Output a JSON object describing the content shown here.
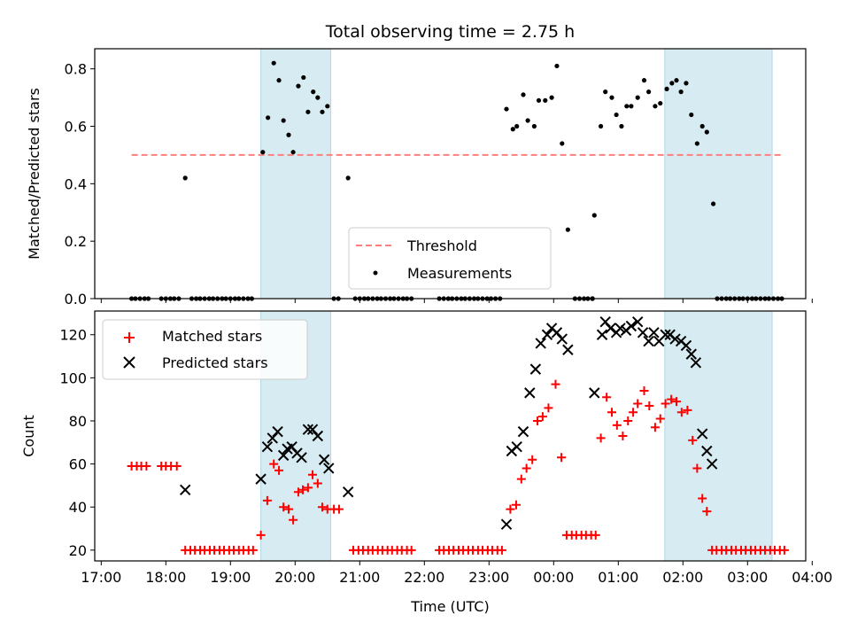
{
  "chart_data": {
    "type": "scatter",
    "title": "Total observing time = 2.75 h",
    "xlabel": "Time (UTC)",
    "xlim_hours": [
      16.9,
      27.9
    ],
    "xticks": [
      {
        "v": 17,
        "label": "17:00"
      },
      {
        "v": 18,
        "label": "18:00"
      },
      {
        "v": 19,
        "label": "19:00"
      },
      {
        "v": 20,
        "label": "20:00"
      },
      {
        "v": 21,
        "label": "21:00"
      },
      {
        "v": 22,
        "label": "22:00"
      },
      {
        "v": 23,
        "label": "23:00"
      },
      {
        "v": 24,
        "label": "00:00"
      },
      {
        "v": 25,
        "label": "01:00"
      },
      {
        "v": 26,
        "label": "02:00"
      },
      {
        "v": 27,
        "label": "03:00"
      },
      {
        "v": 28,
        "label": "04:00"
      }
    ],
    "colors": {
      "span": "#add8e6",
      "threshold": "#ff7f7f",
      "measurement": "#000000",
      "matched": "#ff0000",
      "predicted": "#000000"
    },
    "observing_spans": [
      [
        19.47,
        20.55
      ],
      [
        25.72,
        27.38
      ]
    ],
    "top": {
      "ylabel": "Matched/Predicted stars",
      "ylim": [
        0,
        0.87
      ],
      "yticks": [
        "0.0",
        "0.2",
        "0.4",
        "0.6",
        "0.8"
      ],
      "threshold": {
        "value": 0.5,
        "x": [
          17.47,
          27.55
        ],
        "label": "Threshold"
      },
      "measurements_label": "Measurements",
      "measurements": [
        [
          17.47,
          0
        ],
        [
          17.53,
          0
        ],
        [
          17.6,
          0
        ],
        [
          17.67,
          0
        ],
        [
          17.73,
          0
        ],
        [
          17.93,
          0
        ],
        [
          18.0,
          0
        ],
        [
          18.07,
          0
        ],
        [
          18.13,
          0
        ],
        [
          18.2,
          0
        ],
        [
          18.3,
          0.42
        ],
        [
          18.4,
          0
        ],
        [
          18.47,
          0
        ],
        [
          18.53,
          0
        ],
        [
          18.6,
          0
        ],
        [
          18.67,
          0
        ],
        [
          18.73,
          0
        ],
        [
          18.8,
          0
        ],
        [
          18.87,
          0
        ],
        [
          18.93,
          0
        ],
        [
          19.0,
          0
        ],
        [
          19.07,
          0
        ],
        [
          19.13,
          0
        ],
        [
          19.2,
          0
        ],
        [
          19.27,
          0
        ],
        [
          19.33,
          0
        ],
        [
          19.5,
          0.51
        ],
        [
          19.58,
          0.63
        ],
        [
          19.67,
          0.82
        ],
        [
          19.75,
          0.76
        ],
        [
          19.82,
          0.62
        ],
        [
          19.9,
          0.57
        ],
        [
          19.97,
          0.51
        ],
        [
          20.05,
          0.74
        ],
        [
          20.13,
          0.77
        ],
        [
          20.2,
          0.65
        ],
        [
          20.28,
          0.72
        ],
        [
          20.35,
          0.7
        ],
        [
          20.42,
          0.65
        ],
        [
          20.5,
          0.67
        ],
        [
          20.6,
          0
        ],
        [
          20.67,
          0
        ],
        [
          20.82,
          0.42
        ],
        [
          20.93,
          0
        ],
        [
          21.0,
          0
        ],
        [
          21.07,
          0
        ],
        [
          21.13,
          0
        ],
        [
          21.2,
          0
        ],
        [
          21.27,
          0
        ],
        [
          21.33,
          0
        ],
        [
          21.4,
          0
        ],
        [
          21.47,
          0
        ],
        [
          21.53,
          0
        ],
        [
          21.6,
          0
        ],
        [
          21.67,
          0
        ],
        [
          21.73,
          0
        ],
        [
          21.8,
          0
        ],
        [
          22.23,
          0
        ],
        [
          22.3,
          0
        ],
        [
          22.37,
          0
        ],
        [
          22.43,
          0
        ],
        [
          22.5,
          0
        ],
        [
          22.57,
          0
        ],
        [
          22.63,
          0
        ],
        [
          22.7,
          0
        ],
        [
          22.77,
          0
        ],
        [
          22.83,
          0
        ],
        [
          22.9,
          0
        ],
        [
          22.97,
          0
        ],
        [
          23.03,
          0
        ],
        [
          23.1,
          0
        ],
        [
          23.17,
          0
        ],
        [
          23.27,
          0.66
        ],
        [
          23.37,
          0.59
        ],
        [
          23.43,
          0.6
        ],
        [
          23.53,
          0.71
        ],
        [
          23.6,
          0.62
        ],
        [
          23.7,
          0.6
        ],
        [
          23.77,
          0.69
        ],
        [
          23.87,
          0.69
        ],
        [
          23.97,
          0.7
        ],
        [
          24.05,
          0.81
        ],
        [
          24.13,
          0.54
        ],
        [
          24.22,
          0.24
        ],
        [
          24.33,
          0
        ],
        [
          24.4,
          0
        ],
        [
          24.47,
          0
        ],
        [
          24.53,
          0
        ],
        [
          24.6,
          0
        ],
        [
          24.6,
          0
        ],
        [
          24.6,
          0
        ],
        [
          24.63,
          0.29
        ],
        [
          24.73,
          0.6
        ],
        [
          24.8,
          0.72
        ],
        [
          24.9,
          0.7
        ],
        [
          24.97,
          0.64
        ],
        [
          25.05,
          0.6
        ],
        [
          25.13,
          0.67
        ],
        [
          25.2,
          0.67
        ],
        [
          25.3,
          0.7
        ],
        [
          25.4,
          0.76
        ],
        [
          25.47,
          0.72
        ],
        [
          25.57,
          0.67
        ],
        [
          25.65,
          0.68
        ],
        [
          25.75,
          0.73
        ],
        [
          25.83,
          0.75
        ],
        [
          25.9,
          0.76
        ],
        [
          25.97,
          0.72
        ],
        [
          26.05,
          0.75
        ],
        [
          26.13,
          0.64
        ],
        [
          26.22,
          0.54
        ],
        [
          26.3,
          0.6
        ],
        [
          26.37,
          0.58
        ],
        [
          26.47,
          0.33
        ],
        [
          26.53,
          0
        ],
        [
          26.6,
          0
        ],
        [
          26.67,
          0
        ],
        [
          26.73,
          0
        ],
        [
          26.8,
          0
        ],
        [
          26.87,
          0
        ],
        [
          26.93,
          0
        ],
        [
          27.0,
          0
        ],
        [
          27.07,
          0
        ],
        [
          27.13,
          0
        ],
        [
          27.2,
          0
        ],
        [
          27.27,
          0
        ],
        [
          27.33,
          0
        ],
        [
          27.4,
          0
        ],
        [
          27.47,
          0
        ],
        [
          27.53,
          0
        ]
      ]
    },
    "bottom": {
      "ylabel": "Count",
      "ylim": [
        15,
        131
      ],
      "yticks": [
        "20",
        "40",
        "60",
        "80",
        "100",
        "120"
      ],
      "matched_label": "Matched stars",
      "predicted_label": "Predicted stars",
      "matched": [
        [
          17.47,
          59
        ],
        [
          17.55,
          59
        ],
        [
          17.62,
          59
        ],
        [
          17.7,
          59
        ],
        [
          17.93,
          59
        ],
        [
          18.0,
          59
        ],
        [
          18.08,
          59
        ],
        [
          18.17,
          59
        ],
        [
          18.3,
          20
        ],
        [
          18.38,
          20
        ],
        [
          18.45,
          20
        ],
        [
          18.53,
          20
        ],
        [
          18.6,
          20
        ],
        [
          18.68,
          20
        ],
        [
          18.75,
          20
        ],
        [
          18.83,
          20
        ],
        [
          18.9,
          20
        ],
        [
          18.98,
          20
        ],
        [
          19.05,
          20
        ],
        [
          19.13,
          20
        ],
        [
          19.2,
          20
        ],
        [
          19.28,
          20
        ],
        [
          19.35,
          20
        ],
        [
          19.47,
          27
        ],
        [
          19.57,
          43
        ],
        [
          19.67,
          60
        ],
        [
          19.75,
          57
        ],
        [
          19.82,
          40
        ],
        [
          19.9,
          39
        ],
        [
          19.97,
          34
        ],
        [
          20.05,
          47
        ],
        [
          20.12,
          48
        ],
        [
          20.2,
          49
        ],
        [
          20.27,
          55
        ],
        [
          20.35,
          51
        ],
        [
          20.42,
          40
        ],
        [
          20.5,
          39
        ],
        [
          20.6,
          39
        ],
        [
          20.68,
          39
        ],
        [
          20.9,
          20
        ],
        [
          20.98,
          20
        ],
        [
          21.05,
          20
        ],
        [
          21.13,
          20
        ],
        [
          21.2,
          20
        ],
        [
          21.28,
          20
        ],
        [
          21.35,
          20
        ],
        [
          21.43,
          20
        ],
        [
          21.5,
          20
        ],
        [
          21.58,
          20
        ],
        [
          21.65,
          20
        ],
        [
          21.73,
          20
        ],
        [
          21.8,
          20
        ],
        [
          22.23,
          20
        ],
        [
          22.3,
          20
        ],
        [
          22.38,
          20
        ],
        [
          22.45,
          20
        ],
        [
          22.53,
          20
        ],
        [
          22.6,
          20
        ],
        [
          22.68,
          20
        ],
        [
          22.75,
          20
        ],
        [
          22.83,
          20
        ],
        [
          22.9,
          20
        ],
        [
          22.98,
          20
        ],
        [
          23.05,
          20
        ],
        [
          23.13,
          20
        ],
        [
          23.2,
          20
        ],
        [
          23.33,
          39
        ],
        [
          23.42,
          41
        ],
        [
          23.5,
          53
        ],
        [
          23.58,
          58
        ],
        [
          23.67,
          62
        ],
        [
          23.75,
          80
        ],
        [
          23.83,
          82
        ],
        [
          23.92,
          86
        ],
        [
          24.03,
          97
        ],
        [
          24.12,
          63
        ],
        [
          24.2,
          27
        ],
        [
          24.28,
          27
        ],
        [
          24.35,
          27
        ],
        [
          24.43,
          27
        ],
        [
          24.5,
          27
        ],
        [
          24.58,
          27
        ],
        [
          24.65,
          27
        ],
        [
          24.73,
          72
        ],
        [
          24.82,
          91
        ],
        [
          24.9,
          84
        ],
        [
          24.98,
          78
        ],
        [
          25.07,
          73
        ],
        [
          25.15,
          80
        ],
        [
          25.23,
          84
        ],
        [
          25.3,
          88
        ],
        [
          25.4,
          94
        ],
        [
          25.48,
          87
        ],
        [
          25.57,
          77
        ],
        [
          25.65,
          81
        ],
        [
          25.73,
          88
        ],
        [
          25.82,
          90
        ],
        [
          25.9,
          89
        ],
        [
          25.98,
          84
        ],
        [
          26.07,
          85
        ],
        [
          26.15,
          71
        ],
        [
          26.22,
          58
        ],
        [
          26.3,
          44
        ],
        [
          26.37,
          38
        ],
        [
          26.45,
          20
        ],
        [
          26.52,
          20
        ],
        [
          26.6,
          20
        ],
        [
          26.67,
          20
        ],
        [
          26.75,
          20
        ],
        [
          26.82,
          20
        ],
        [
          26.9,
          20
        ],
        [
          26.97,
          20
        ],
        [
          27.05,
          20
        ],
        [
          27.12,
          20
        ],
        [
          27.2,
          20
        ],
        [
          27.27,
          20
        ],
        [
          27.35,
          20
        ],
        [
          27.42,
          20
        ],
        [
          27.5,
          20
        ],
        [
          27.57,
          20
        ]
      ],
      "predicted": [
        [
          18.3,
          48
        ],
        [
          19.47,
          53
        ],
        [
          19.57,
          68
        ],
        [
          19.65,
          72
        ],
        [
          19.73,
          75
        ],
        [
          19.82,
          64
        ],
        [
          19.88,
          67
        ],
        [
          19.95,
          68
        ],
        [
          20.03,
          65
        ],
        [
          20.1,
          63
        ],
        [
          20.2,
          76
        ],
        [
          20.27,
          76
        ],
        [
          20.35,
          73
        ],
        [
          20.45,
          62
        ],
        [
          20.52,
          58
        ],
        [
          20.82,
          47
        ],
        [
          23.27,
          32
        ],
        [
          23.35,
          66
        ],
        [
          23.43,
          68
        ],
        [
          23.53,
          75
        ],
        [
          23.63,
          93
        ],
        [
          23.72,
          104
        ],
        [
          23.8,
          116
        ],
        [
          23.9,
          120
        ],
        [
          23.97,
          123
        ],
        [
          24.05,
          121
        ],
        [
          24.13,
          118
        ],
        [
          24.22,
          113
        ],
        [
          24.63,
          93
        ],
        [
          24.75,
          120
        ],
        [
          24.8,
          126
        ],
        [
          24.88,
          123
        ],
        [
          24.97,
          121
        ],
        [
          25.03,
          123
        ],
        [
          25.12,
          122
        ],
        [
          25.2,
          124
        ],
        [
          25.3,
          126
        ],
        [
          25.38,
          121
        ],
        [
          25.47,
          117
        ],
        [
          25.55,
          121
        ],
        [
          25.63,
          117
        ],
        [
          25.73,
          120
        ],
        [
          25.8,
          120
        ],
        [
          25.88,
          118
        ],
        [
          25.97,
          117
        ],
        [
          26.05,
          115
        ],
        [
          26.13,
          111
        ],
        [
          26.2,
          107
        ],
        [
          26.3,
          74
        ],
        [
          26.37,
          66
        ],
        [
          26.45,
          60
        ]
      ]
    }
  }
}
